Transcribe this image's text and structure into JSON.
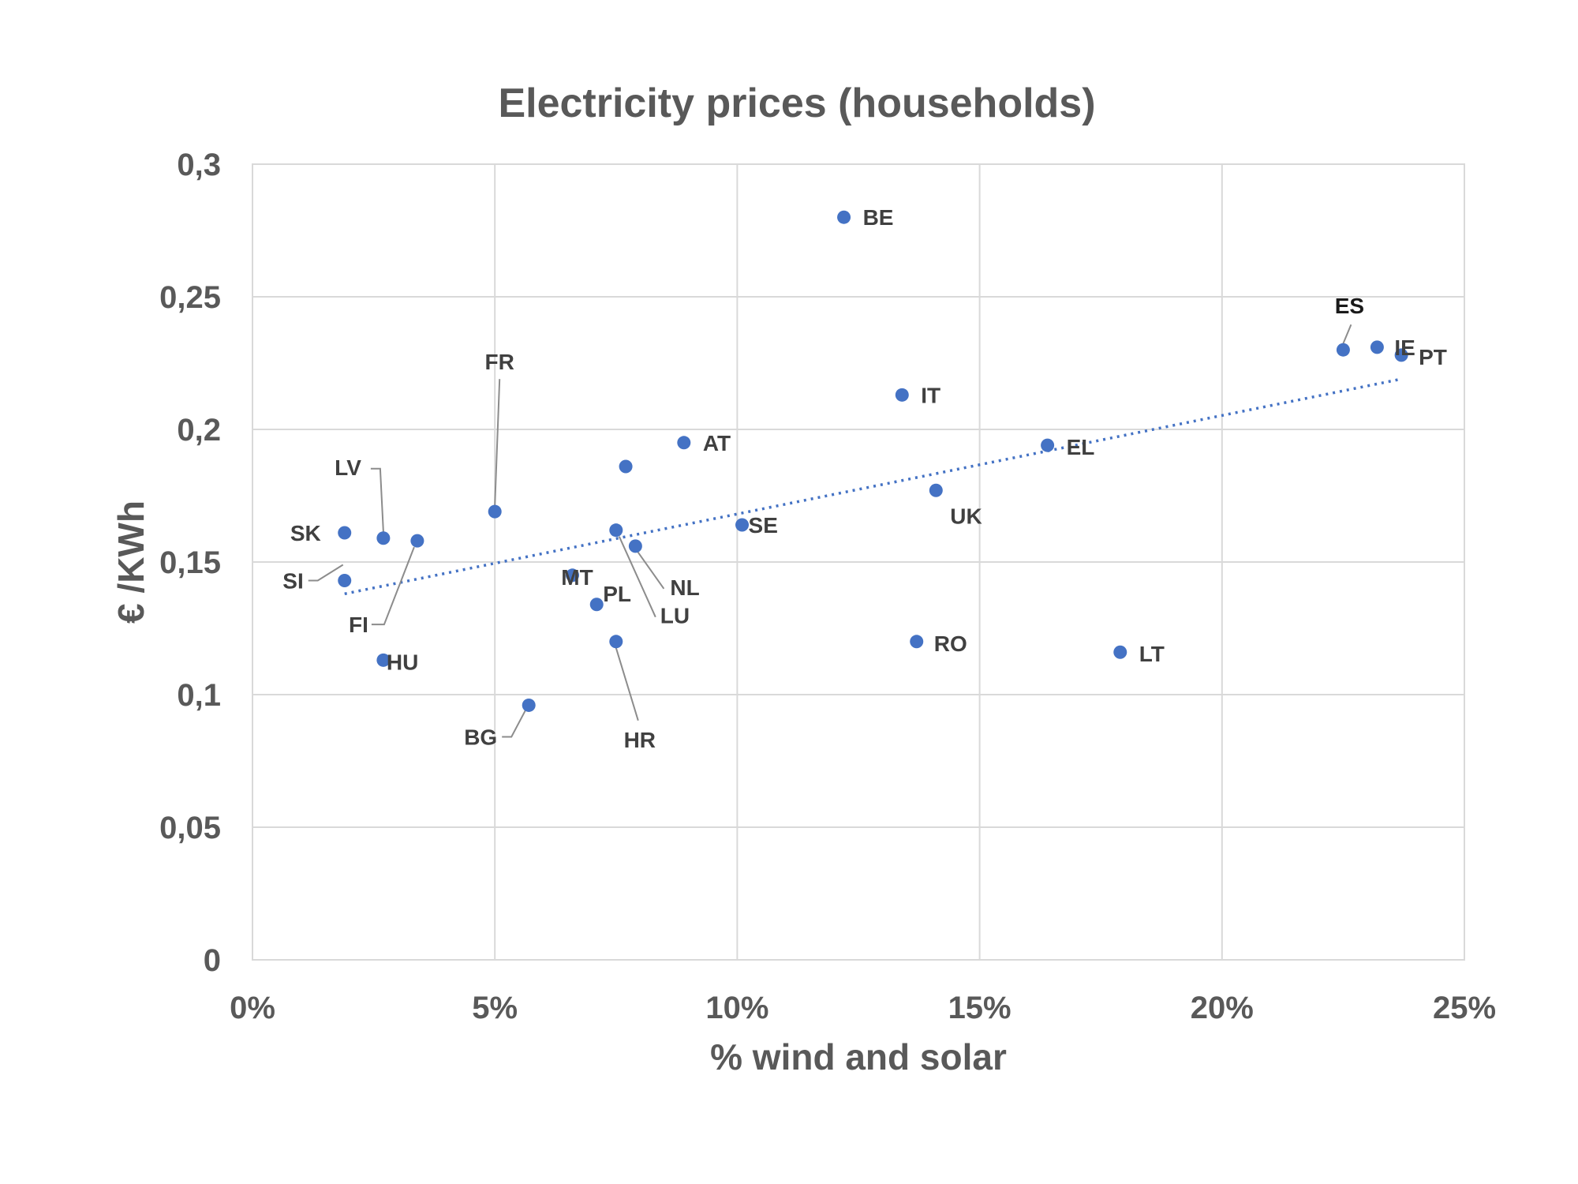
{
  "chart_data": {
    "type": "scatter",
    "title": "Electricity prices (households)",
    "xlabel": "%  wind and solar",
    "ylabel": "€ /KWh",
    "xlim": [
      0,
      0.25
    ],
    "ylim": [
      0,
      0.3
    ],
    "x_ticks": [
      0,
      0.05,
      0.1,
      0.15,
      0.2,
      0.25
    ],
    "x_tick_labels": [
      "0%",
      "5%",
      "10%",
      "15%",
      "20%",
      "25%"
    ],
    "y_ticks": [
      0,
      0.05,
      0.1,
      0.15,
      0.2,
      0.25,
      0.3
    ],
    "y_tick_labels": [
      "0",
      "0,05",
      "0,1",
      "0,15",
      "0,2",
      "0,25",
      "0,3"
    ],
    "grid": true,
    "legend": "none",
    "marker_color": "#4472c4",
    "trendline": {
      "style": "dotted",
      "color": "#4472c4",
      "x_start": 0.019,
      "y_start": 0.138,
      "x_end": 0.237,
      "y_end": 0.219
    },
    "points": [
      {
        "label": "BE",
        "x": 0.122,
        "y": 0.28
      },
      {
        "label": "ES",
        "x": 0.225,
        "y": 0.23
      },
      {
        "label": "IE",
        "x": 0.232,
        "y": 0.231
      },
      {
        "label": "PT",
        "x": 0.237,
        "y": 0.228
      },
      {
        "label": "FR",
        "x": 0.05,
        "y": 0.169
      },
      {
        "label": "IT",
        "x": 0.134,
        "y": 0.213
      },
      {
        "label": "AT",
        "x": 0.089,
        "y": 0.195
      },
      {
        "label": "",
        "x": 0.077,
        "y": 0.186
      },
      {
        "label": "EL",
        "x": 0.164,
        "y": 0.194
      },
      {
        "label": "LV",
        "x": 0.027,
        "y": 0.159
      },
      {
        "label": "UK",
        "x": 0.141,
        "y": 0.177
      },
      {
        "label": "SK",
        "x": 0.019,
        "y": 0.161
      },
      {
        "label": "FI",
        "x": 0.034,
        "y": 0.158
      },
      {
        "label": "SE",
        "x": 0.101,
        "y": 0.164
      },
      {
        "label": "LU",
        "x": 0.075,
        "y": 0.162
      },
      {
        "label": "NL",
        "x": 0.079,
        "y": 0.156
      },
      {
        "label": "SI",
        "x": 0.019,
        "y": 0.143
      },
      {
        "label": "MT",
        "x": 0.066,
        "y": 0.145
      },
      {
        "label": "PL",
        "x": 0.071,
        "y": 0.134
      },
      {
        "label": "RO",
        "x": 0.137,
        "y": 0.12
      },
      {
        "label": "HR",
        "x": 0.075,
        "y": 0.12
      },
      {
        "label": "LT",
        "x": 0.179,
        "y": 0.116
      },
      {
        "label": "HU",
        "x": 0.027,
        "y": 0.113
      },
      {
        "label": "BG",
        "x": 0.057,
        "y": 0.096
      }
    ]
  }
}
